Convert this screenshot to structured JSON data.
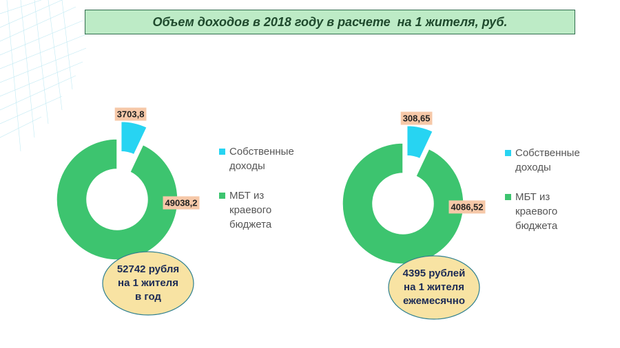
{
  "title": "Объем доходов в 2018 году в расчете  на 1 жителя, руб.",
  "chart_data": [
    {
      "type": "pie",
      "donut": true,
      "categories": [
        "Собственные доходы",
        "МБТ из краевого бюджета"
      ],
      "values": [
        3703.8,
        49038.2
      ],
      "value_labels": [
        "3703,8",
        "49038,2"
      ],
      "colors": [
        "#27d4f2",
        "#3dc46f"
      ],
      "annotation": [
        "52742 рубля",
        "на 1 жителя",
        "в год"
      ]
    },
    {
      "type": "pie",
      "donut": true,
      "categories": [
        "Собственные доходы",
        "МБТ из краевого бюджета"
      ],
      "values": [
        308.65,
        4086.52
      ],
      "value_labels": [
        "308,65",
        "4086,52"
      ],
      "colors": [
        "#27d4f2",
        "#3dc46f"
      ],
      "annotation": [
        "4395 рублей",
        "на 1 жителя",
        "ежемесячно"
      ]
    }
  ]
}
